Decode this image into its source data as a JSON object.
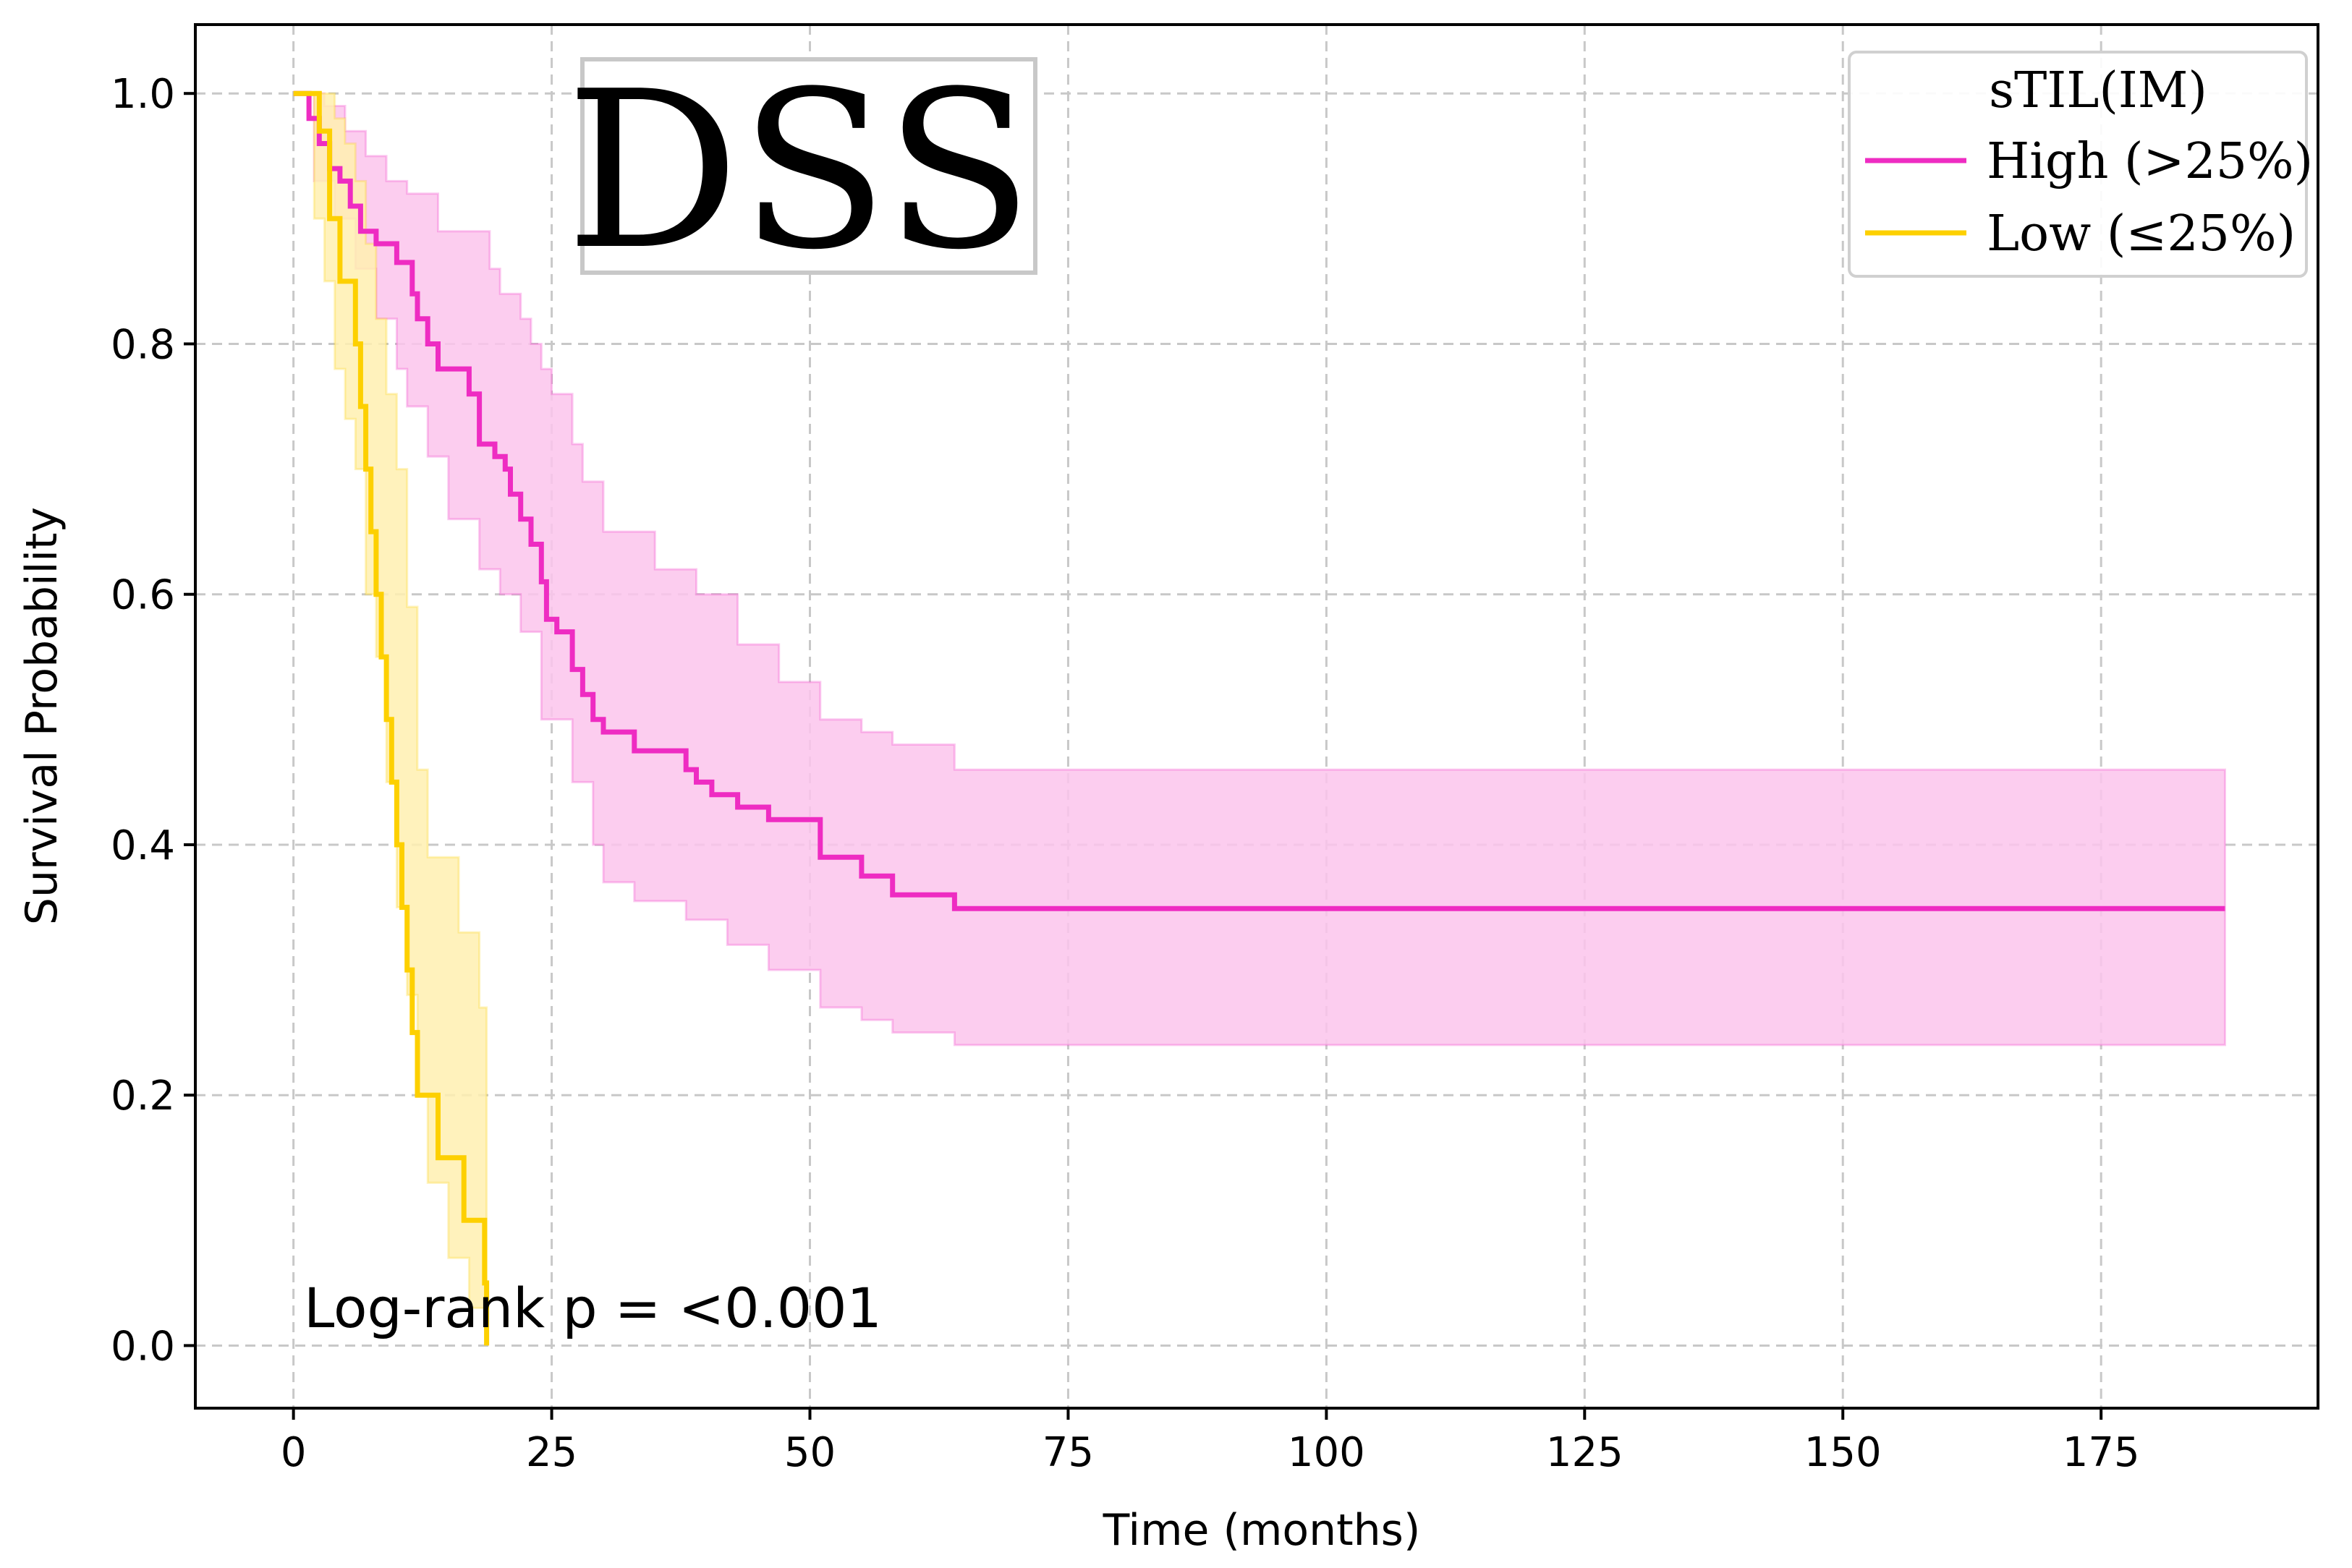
{
  "chart_data": {
    "type": "line",
    "subtype": "kaplan-meier",
    "title": "DSS",
    "xlabel": "Time (months)",
    "ylabel": "Survival Probability",
    "xlim": [
      -9.5,
      196
    ],
    "ylim": [
      -0.05,
      1.055
    ],
    "xticks": [
      0,
      25,
      50,
      75,
      100,
      125,
      150,
      175
    ],
    "xtick_labels": [
      "0",
      "25",
      "50",
      "75",
      "100",
      "125",
      "150",
      "175"
    ],
    "yticks": [
      0.0,
      0.2,
      0.4,
      0.6,
      0.8,
      1.0
    ],
    "ytick_labels": [
      "0.0",
      "0.2",
      "0.4",
      "0.6",
      "0.8",
      "1.0"
    ],
    "grid": true,
    "legend": {
      "title": "sTIL(IM)",
      "position": "top-right"
    },
    "annotation": "Log-rank p = <0.001",
    "series": [
      {
        "name": "High (>25%)",
        "color": "#ee2cc2",
        "band_color": "#fcc4ec",
        "steps": [
          [
            0,
            1.0
          ],
          [
            1.5,
            0.98
          ],
          [
            2.5,
            0.96
          ],
          [
            3.5,
            0.94
          ],
          [
            4.5,
            0.93
          ],
          [
            5.5,
            0.91
          ],
          [
            6.5,
            0.89
          ],
          [
            8,
            0.88
          ],
          [
            10,
            0.865
          ],
          [
            11,
            0.865
          ],
          [
            11.5,
            0.84
          ],
          [
            12,
            0.82
          ],
          [
            13,
            0.8
          ],
          [
            14,
            0.78
          ],
          [
            15.5,
            0.78
          ],
          [
            17,
            0.76
          ],
          [
            18,
            0.72
          ],
          [
            19.5,
            0.71
          ],
          [
            20.5,
            0.7
          ],
          [
            21,
            0.68
          ],
          [
            22,
            0.66
          ],
          [
            23,
            0.64
          ],
          [
            24,
            0.61
          ],
          [
            24.5,
            0.58
          ],
          [
            25.5,
            0.57
          ],
          [
            27,
            0.54
          ],
          [
            28,
            0.52
          ],
          [
            29,
            0.5
          ],
          [
            30,
            0.49
          ],
          [
            33,
            0.475
          ],
          [
            38,
            0.46
          ],
          [
            39,
            0.45
          ],
          [
            40.5,
            0.44
          ],
          [
            43,
            0.43
          ],
          [
            46,
            0.42
          ],
          [
            51,
            0.39
          ],
          [
            55,
            0.375
          ],
          [
            58,
            0.36
          ],
          [
            64,
            0.349
          ],
          [
            187,
            0.349
          ]
        ],
        "upper": [
          [
            0,
            1.0
          ],
          [
            3,
            0.99
          ],
          [
            5,
            0.97
          ],
          [
            7,
            0.95
          ],
          [
            9,
            0.93
          ],
          [
            11,
            0.92
          ],
          [
            14,
            0.89
          ],
          [
            19,
            0.86
          ],
          [
            20,
            0.84
          ],
          [
            22,
            0.82
          ],
          [
            23,
            0.8
          ],
          [
            24,
            0.78
          ],
          [
            25,
            0.76
          ],
          [
            27,
            0.72
          ],
          [
            28,
            0.69
          ],
          [
            30,
            0.65
          ],
          [
            35,
            0.62
          ],
          [
            39,
            0.6
          ],
          [
            43,
            0.56
          ],
          [
            47,
            0.53
          ],
          [
            51,
            0.5
          ],
          [
            55,
            0.49
          ],
          [
            58,
            0.48
          ],
          [
            64,
            0.46
          ],
          [
            187,
            0.46
          ]
        ],
        "lower": [
          [
            0,
            1.0
          ],
          [
            2,
            0.93
          ],
          [
            4,
            0.9
          ],
          [
            6,
            0.86
          ],
          [
            8,
            0.82
          ],
          [
            10,
            0.78
          ],
          [
            11,
            0.75
          ],
          [
            13,
            0.71
          ],
          [
            15,
            0.66
          ],
          [
            18,
            0.62
          ],
          [
            20,
            0.6
          ],
          [
            22,
            0.57
          ],
          [
            24,
            0.5
          ],
          [
            27,
            0.45
          ],
          [
            29,
            0.4
          ],
          [
            30,
            0.37
          ],
          [
            33,
            0.355
          ],
          [
            38,
            0.34
          ],
          [
            42,
            0.32
          ],
          [
            46,
            0.3
          ],
          [
            51,
            0.27
          ],
          [
            55,
            0.26
          ],
          [
            58,
            0.25
          ],
          [
            64,
            0.24
          ],
          [
            187,
            0.24
          ]
        ]
      },
      {
        "name": "Low (≤25%)",
        "color": "#fdd000",
        "band_color": "#fff0b0",
        "steps": [
          [
            0,
            1.0
          ],
          [
            2,
            1.0
          ],
          [
            2.5,
            0.97
          ],
          [
            3.5,
            0.9
          ],
          [
            4.5,
            0.85
          ],
          [
            6,
            0.8
          ],
          [
            6.5,
            0.75
          ],
          [
            7,
            0.7
          ],
          [
            7.5,
            0.65
          ],
          [
            8,
            0.6
          ],
          [
            8.5,
            0.55
          ],
          [
            9,
            0.5
          ],
          [
            9.5,
            0.45
          ],
          [
            10,
            0.4
          ],
          [
            10.5,
            0.35
          ],
          [
            11,
            0.3
          ],
          [
            11.5,
            0.25
          ],
          [
            12,
            0.2
          ],
          [
            14,
            0.15
          ],
          [
            16.5,
            0.1
          ],
          [
            18.5,
            0.05
          ],
          [
            18.7,
            0.0
          ]
        ],
        "upper": [
          [
            0,
            1.0
          ],
          [
            2,
            1.0
          ],
          [
            3,
            1.0
          ],
          [
            4,
            0.98
          ],
          [
            5,
            0.96
          ],
          [
            6,
            0.93
          ],
          [
            7,
            0.88
          ],
          [
            8,
            0.82
          ],
          [
            9,
            0.76
          ],
          [
            10,
            0.7
          ],
          [
            11,
            0.59
          ],
          [
            12,
            0.46
          ],
          [
            13,
            0.39
          ],
          [
            16,
            0.33
          ],
          [
            18,
            0.27
          ],
          [
            18.7,
            0.2
          ]
        ],
        "lower": [
          [
            0,
            1.0
          ],
          [
            2,
            0.9
          ],
          [
            3,
            0.85
          ],
          [
            4,
            0.78
          ],
          [
            5,
            0.74
          ],
          [
            6,
            0.7
          ],
          [
            7,
            0.6
          ],
          [
            8,
            0.55
          ],
          [
            9,
            0.45
          ],
          [
            10,
            0.35
          ],
          [
            11,
            0.28
          ],
          [
            12,
            0.2
          ],
          [
            13,
            0.13
          ],
          [
            15,
            0.07
          ],
          [
            17,
            0.03
          ],
          [
            18.7,
            0.0
          ]
        ]
      }
    ]
  }
}
